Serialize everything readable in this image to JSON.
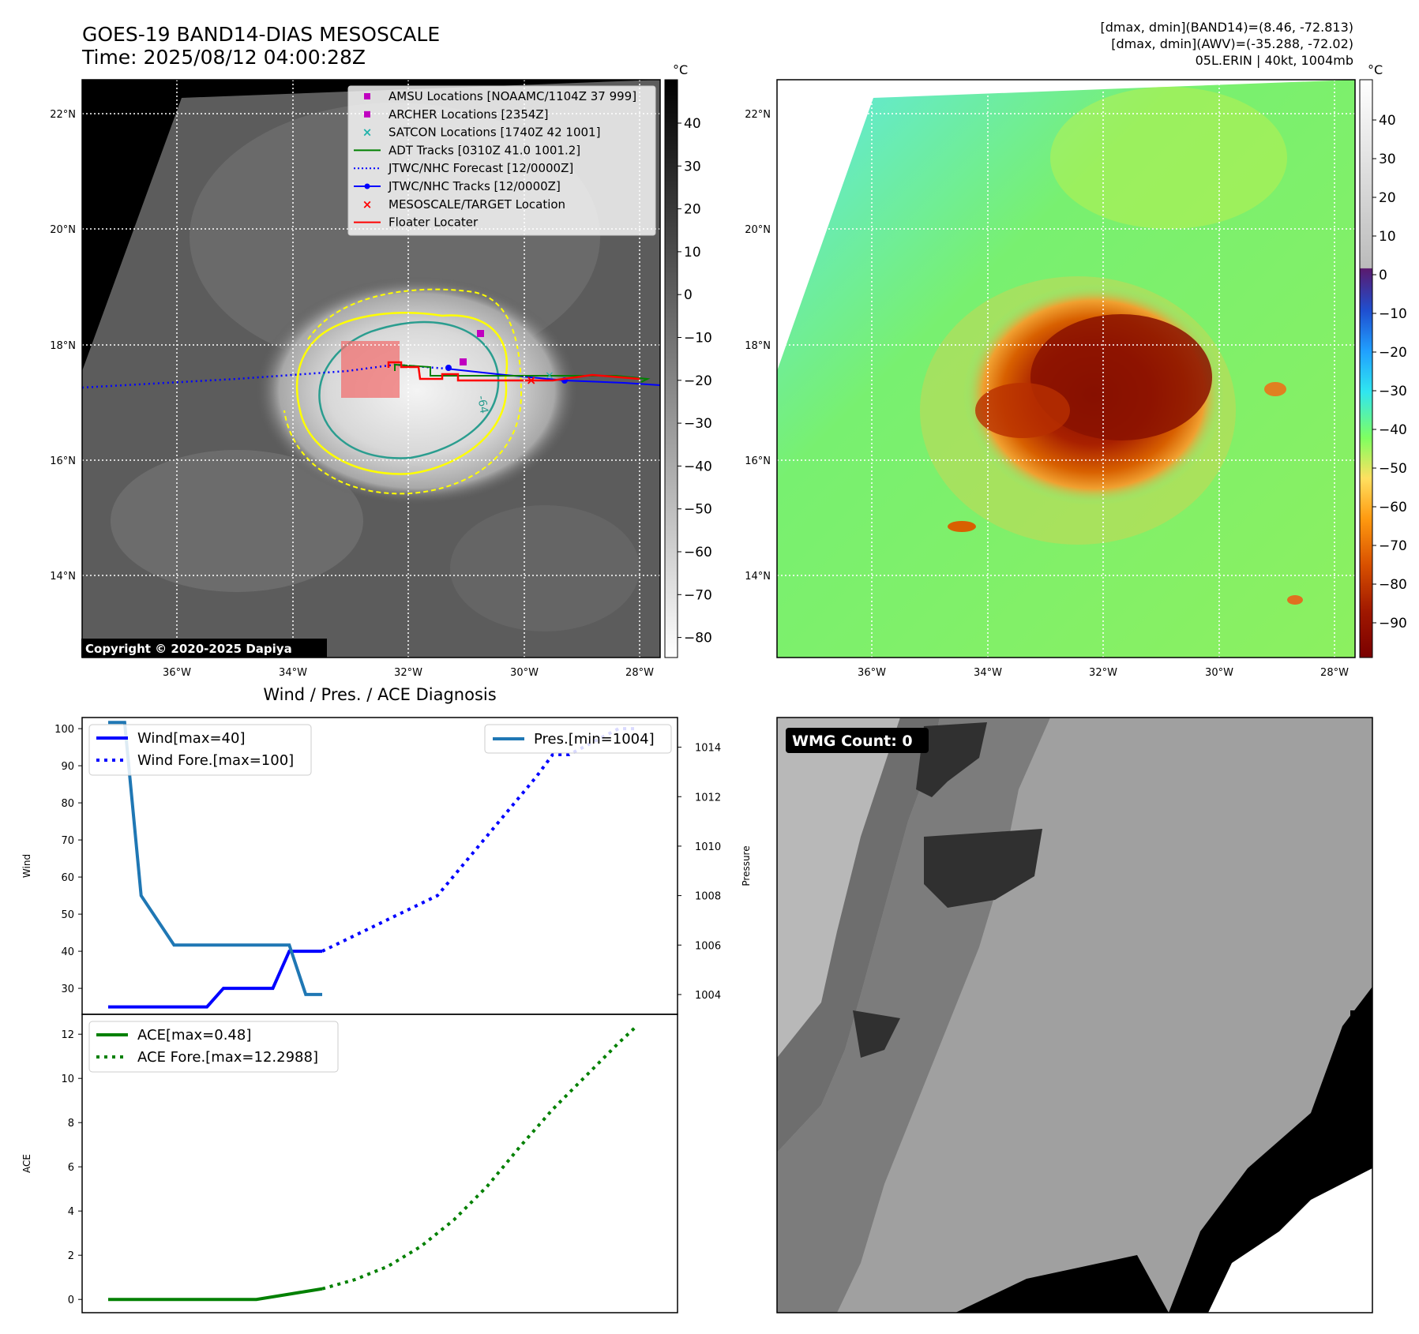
{
  "header": {
    "title_line1": "GOES-19 BAND14-DIAS MESOSCALE",
    "title_line2": "Time: 2025/08/12 04:00:28Z",
    "info_line1": "[dmax, dmin](BAND14)=(8.46, -72.813)",
    "info_line2": "[dmax, dmin](AWV)=(-35.288, -72.02)",
    "info_line3": "05L.ERIN | 40kt, 1004mb"
  },
  "copyright": "Copyright © 2020-2025 Dapiya",
  "map": {
    "lon_ticks": [
      "36°W",
      "34°W",
      "32°W",
      "30°W",
      "28°W"
    ],
    "lat_ticks": [
      "22°N",
      "20°N",
      "18°N",
      "16°N",
      "14°N"
    ],
    "legend": [
      {
        "label": "AMSU Locations [NOAAMC/1104Z 37 999]",
        "marker": "square",
        "color": "#c000c0"
      },
      {
        "label": "ARCHER Locations [2354Z]",
        "marker": "square",
        "color": "#c000c0"
      },
      {
        "label": "SATCON Locations [1740Z 42 1001]",
        "marker": "x",
        "color": "#20b2aa"
      },
      {
        "label": "ADT Tracks [0310Z 41.0 1001.2]",
        "marker": "line",
        "color": "#008000"
      },
      {
        "label": "JTWC/NHC Forecast [12/0000Z]",
        "marker": "dotted",
        "color": "#0000ff"
      },
      {
        "label": "JTWC/NHC Tracks [12/0000Z]",
        "marker": "line-dot",
        "color": "#0000ff"
      },
      {
        "label": "MESOSCALE/TARGET Location",
        "marker": "x",
        "color": "#ff0000"
      },
      {
        "label": "Floater Locater",
        "marker": "line",
        "color": "#ff0000"
      }
    ],
    "contour_label": "-64"
  },
  "colorbar_left": {
    "unit": "°C",
    "ticks": [
      "40",
      "30",
      "20",
      "10",
      "0",
      "−10",
      "−20",
      "−30",
      "−40",
      "−50",
      "−60",
      "−70",
      "−80"
    ]
  },
  "colorbar_right": {
    "unit": "°C",
    "ticks": [
      "40",
      "30",
      "20",
      "10",
      "0",
      "−10",
      "−20",
      "−30",
      "−40",
      "−50",
      "−60",
      "−70",
      "−80",
      "−90"
    ]
  },
  "wmg": {
    "label": "WMG Count: 0"
  },
  "colors": {
    "wind": "#0000ff",
    "pressure": "#1f77b4",
    "ace": "#008000",
    "floater": "#ff0000",
    "track": "#0000ff",
    "contour_yellow": "#ffff00",
    "contour_teal": "#2a9d8f"
  },
  "chart_data": [
    {
      "type": "line",
      "title": "Wind / Pres. / ACE Diagnosis",
      "ylabel": "Wind",
      "ylim": [
        23,
        103
      ],
      "y_ticks": [
        "100",
        "90",
        "80",
        "70",
        "60",
        "50",
        "40",
        "30"
      ],
      "x_range": [
        0,
        33
      ],
      "series": [
        {
          "name": "Wind[max=40]",
          "style": "solid",
          "x": [
            0,
            6,
            7,
            10,
            11,
            12,
            13
          ],
          "y": [
            25,
            25,
            30,
            30,
            40,
            40,
            40
          ]
        },
        {
          "name": "Wind Fore.[max=100]",
          "style": "dotted",
          "x": [
            13,
            20,
            26,
            27,
            28,
            31,
            32
          ],
          "y": [
            40,
            55,
            87,
            93,
            93,
            100,
            100
          ]
        }
      ],
      "secondary": {
        "ylabel": "Pressure",
        "ylim": [
          1003.2,
          1015.2
        ],
        "y_ticks": [
          "1014",
          "1012",
          "1010",
          "1008",
          "1006",
          "1004"
        ],
        "series": [
          {
            "name": "Pres.[min=1004]",
            "style": "solid",
            "x": [
              0,
              1,
              2,
              4,
              11,
              12,
              13
            ],
            "y": [
              1015,
              1015,
              1008,
              1006,
              1006,
              1004,
              1004
            ]
          }
        ]
      }
    },
    {
      "type": "line",
      "ylabel": "ACE",
      "ylim": [
        -0.6,
        12.9
      ],
      "y_ticks": [
        "12",
        "10",
        "8",
        "6",
        "4",
        "2",
        "0"
      ],
      "x_range": [
        0,
        33
      ],
      "series": [
        {
          "name": "ACE[max=0.48]",
          "style": "solid",
          "x": [
            0,
            9,
            10,
            11,
            12,
            13
          ],
          "y": [
            0,
            0,
            0.12,
            0.24,
            0.36,
            0.48
          ]
        },
        {
          "name": "ACE Fore.[max=12.2988]",
          "style": "dotted",
          "x": [
            13,
            15,
            17,
            19,
            21,
            23,
            25,
            27,
            29,
            31,
            32
          ],
          "y": [
            0.48,
            0.9,
            1.5,
            2.4,
            3.6,
            5.1,
            6.9,
            8.6,
            10.1,
            11.6,
            12.2988
          ]
        }
      ]
    }
  ]
}
